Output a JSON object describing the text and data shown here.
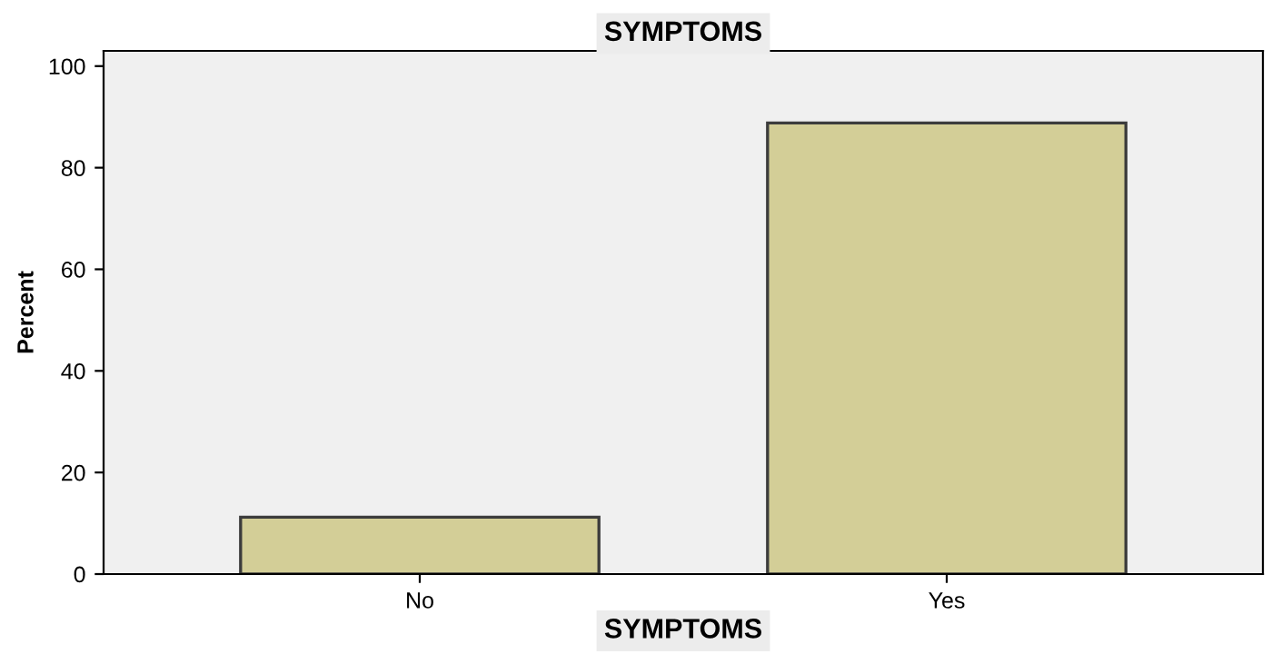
{
  "chart_data": {
    "type": "bar",
    "title": "SYMPTOMS",
    "xlabel": "SYMPTOMS",
    "ylabel": "Percent",
    "categories": [
      "No",
      "Yes"
    ],
    "values": [
      11.2,
      88.8
    ],
    "color": "#d3ce97",
    "ylim": [
      0,
      103
    ],
    "yticks": [
      0,
      20,
      40,
      60,
      80,
      100
    ],
    "grid": false
  }
}
